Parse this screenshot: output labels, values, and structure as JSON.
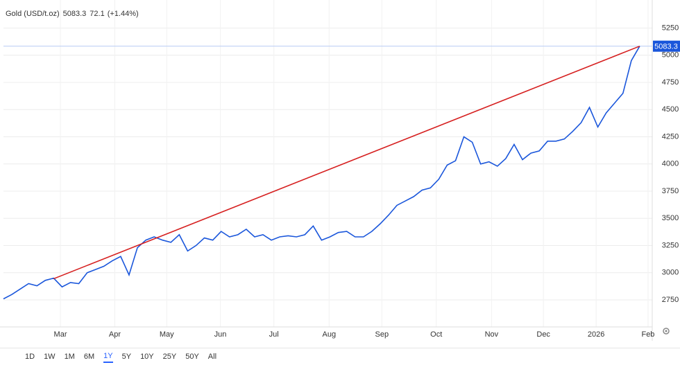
{
  "chart_data": {
    "type": "line",
    "title": "Gold (USD/t.oz)",
    "change": 72.1,
    "change_pct_label": "(+1.44%)",
    "change_color": "#22a032",
    "price_color": "#1a56db",
    "series": [
      {
        "name": "Gold",
        "color": "#1a56db",
        "values": [
          2760,
          2800,
          2850,
          2900,
          2880,
          2930,
          2950,
          2870,
          2910,
          2900,
          3000,
          3030,
          3060,
          3110,
          3150,
          2980,
          3230,
          3300,
          3330,
          3300,
          3280,
          3350,
          3200,
          3250,
          3320,
          3300,
          3380,
          3330,
          3350,
          3400,
          3330,
          3350,
          3300,
          3330,
          3340,
          3330,
          3350,
          3430,
          3300,
          3330,
          3370,
          3380,
          3330,
          3330,
          3380,
          3450,
          3530,
          3620,
          3660,
          3700,
          3760,
          3780,
          3860,
          3990,
          4030,
          4250,
          4200,
          4000,
          4020,
          3980,
          4050,
          4180,
          4040,
          4100,
          4120,
          4210,
          4210,
          4230,
          4300,
          4380,
          4520,
          4340,
          4470,
          4560,
          4650,
          4950,
          5083.3
        ]
      }
    ],
    "trendline": {
      "color": "#d62020",
      "x": [
        6,
        76
      ],
      "values": [
        2945,
        5083.3
      ]
    },
    "xlim": [
      0,
      77.5
    ],
    "xticks": [
      {
        "value": 6.8,
        "label": "Mar"
      },
      {
        "value": 13.3,
        "label": "Apr"
      },
      {
        "value": 19.5,
        "label": "May"
      },
      {
        "value": 25.9,
        "label": "Jun"
      },
      {
        "value": 32.3,
        "label": "Jul"
      },
      {
        "value": 38.9,
        "label": "Aug"
      },
      {
        "value": 45.2,
        "label": "Sep"
      },
      {
        "value": 51.7,
        "label": "Oct"
      },
      {
        "value": 58.3,
        "label": "Nov"
      },
      {
        "value": 64.5,
        "label": "Dec"
      },
      {
        "value": 70.8,
        "label": "2026"
      },
      {
        "value": 77.0,
        "label": "Feb"
      }
    ],
    "ylim": [
      2502,
      5508
    ],
    "yticks": [
      2750,
      3000,
      3250,
      3500,
      3750,
      4000,
      4250,
      4500,
      4750,
      5000,
      5250
    ],
    "grid": true,
    "range_buttons": [
      "1D",
      "1W",
      "1M",
      "6M",
      "1Y",
      "5Y",
      "10Y",
      "25Y",
      "50Y",
      "All"
    ],
    "active_range_index": 4
  }
}
